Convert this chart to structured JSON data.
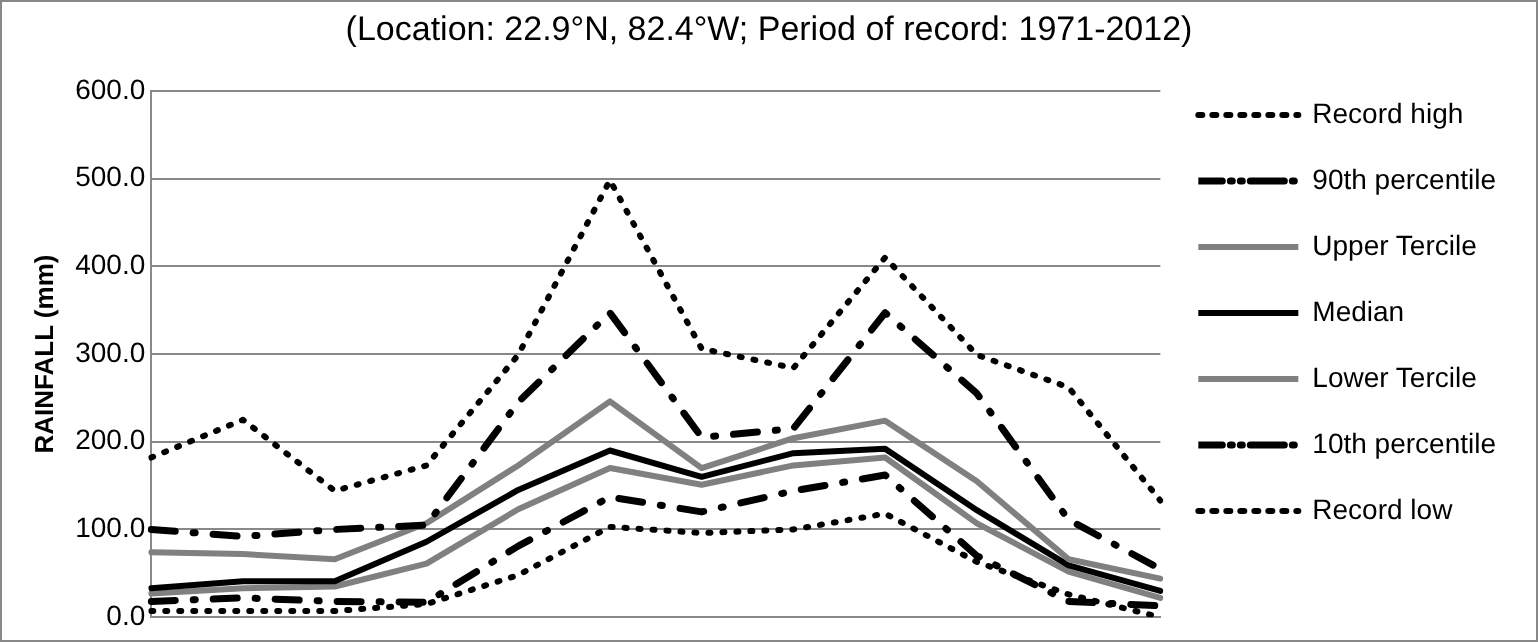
{
  "chart_data": {
    "type": "line",
    "title": "(Location: 22.9°N, 82.4°W; Period of record: 1971-2012)",
    "ylabel": "RAINFALL (mm)",
    "categories": [
      null,
      null,
      null,
      null,
      null,
      null,
      null,
      null,
      null,
      null,
      null,
      null
    ],
    "ylim": [
      0,
      600
    ],
    "yticks": [
      {
        "value": 0,
        "label": "0.0"
      },
      {
        "value": 100,
        "label": "100.0"
      },
      {
        "value": 200,
        "label": "200.0"
      },
      {
        "value": 300,
        "label": "300.0"
      },
      {
        "value": 400,
        "label": "400.0"
      },
      {
        "value": 500,
        "label": "500.0"
      },
      {
        "value": 600,
        "label": "600.0"
      }
    ],
    "grid": "y",
    "legend": "right",
    "tick_labels": "y",
    "marker": "none",
    "series": [
      {
        "name": "Record high",
        "color": "#000000",
        "line_style": "dotted",
        "values": [
          182,
          225,
          144,
          173,
          299,
          498,
          306,
          284,
          410,
          299,
          262,
          133
        ]
      },
      {
        "name": "90th percentile",
        "color": "#000000",
        "line_style": "dashed",
        "values": [
          100,
          92,
          100,
          105,
          245,
          347,
          205,
          215,
          347,
          255,
          111,
          55
        ]
      },
      {
        "name": "Upper Tercile",
        "color": "#808080",
        "line_style": "solid",
        "values": [
          74,
          72,
          66,
          107,
          173,
          246,
          170,
          204,
          224,
          155,
          66,
          44
        ]
      },
      {
        "name": "Median",
        "color": "#000000",
        "line_style": "solid",
        "values": [
          33,
          41,
          41,
          86,
          145,
          190,
          160,
          187,
          192,
          122,
          59,
          30
        ]
      },
      {
        "name": "Lower Tercile",
        "color": "#808080",
        "line_style": "solid",
        "values": [
          27,
          33,
          35,
          61,
          123,
          170,
          151,
          173,
          182,
          107,
          52,
          22
        ]
      },
      {
        "name": "10th percentile",
        "color": "#000000",
        "line_style": "dashed",
        "values": [
          18,
          22,
          18,
          17,
          81,
          137,
          120,
          144,
          162,
          70,
          18,
          13
        ]
      },
      {
        "name": "Record low",
        "color": "#000000",
        "line_style": "dotted",
        "values": [
          7,
          7,
          7,
          15,
          48,
          103,
          96,
          100,
          118,
          63,
          26,
          0
        ]
      }
    ]
  }
}
